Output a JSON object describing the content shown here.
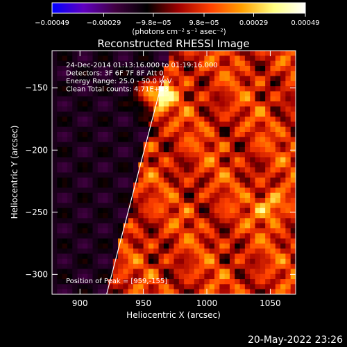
{
  "chart_data": {
    "type": "heatmap",
    "title": "Reconstructed RHESSI Image",
    "xlabel": "Heliocentric X (arcsec)",
    "ylabel": "Heliocentric Y (arcsec)",
    "xlim": [
      878,
      1070
    ],
    "ylim": [
      -316,
      -120
    ],
    "x_ticks": [
      {
        "value": 900,
        "label": "900"
      },
      {
        "value": 950,
        "label": "950"
      },
      {
        "value": 1000,
        "label": "1000"
      },
      {
        "value": 1050,
        "label": "1050"
      }
    ],
    "y_ticks": [
      {
        "value": -150,
        "label": "−150"
      },
      {
        "value": -200,
        "label": "−200"
      },
      {
        "value": -250,
        "label": "−250"
      },
      {
        "value": -300,
        "label": "−300"
      }
    ],
    "colorbar": {
      "range": [
        -0.00049,
        0.00049
      ],
      "unit_label": "(photons cm⁻² s⁻¹ asec⁻²)",
      "ticks": [
        {
          "value": -0.00049,
          "label": "−0.00049"
        },
        {
          "value": -0.00029,
          "label": "−0.00029"
        },
        {
          "value": -9.8e-05,
          "label": "−9.8e−05"
        },
        {
          "value": 9.8e-05,
          "label": "9.8e−05"
        },
        {
          "value": 0.00029,
          "label": "0.00029"
        },
        {
          "value": 0.00049,
          "label": "0.00049"
        }
      ],
      "colors": [
        "#0000ff",
        "#6000c0",
        "#400040",
        "#000000",
        "#a00000",
        "#ff4000",
        "#ffa000",
        "#ffff80",
        "#ffffff"
      ]
    },
    "annotations": [
      "24-Dec-2014 01:13:16.000 to 01:19:16.000",
      "Detectors: 3F 6F 7F 8F  Att 0",
      "Energy Range: 25.0 - 50.0 keV",
      "Clean    Total counts: 4.71E+03"
    ],
    "peak_label": "Position of Peak = [959,-155]",
    "peak": {
      "x": 959,
      "y": -155
    },
    "limb_line": [
      {
        "x": 921,
        "y": -316
      },
      {
        "x": 966,
        "y": -140
      }
    ]
  },
  "footer_date": "20-May-2022 23:26"
}
